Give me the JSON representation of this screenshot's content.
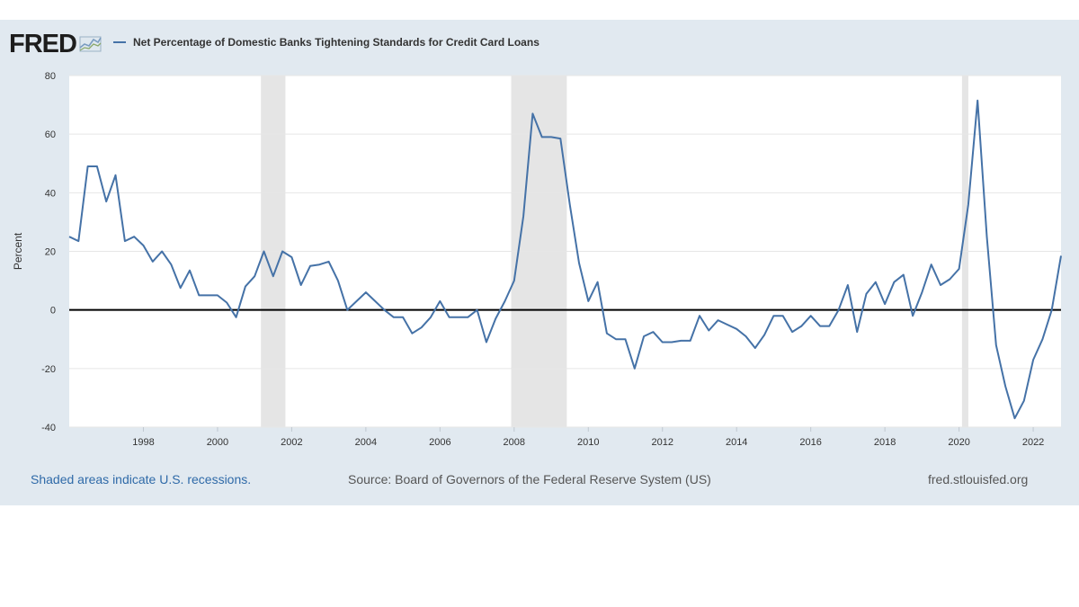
{
  "logo": {
    "text": "FRED",
    "icon": "chart-line-icon"
  },
  "footer": {
    "recession_note": "Shaded areas indicate U.S. recessions.",
    "source": "Source: Board of Governors of the Federal Reserve System (US)",
    "url": "fred.stlouisfed.org"
  },
  "colors": {
    "panel_background": "#e1e9f0",
    "plot_background": "#ffffff",
    "series_line": "#4572a7",
    "recession_shade": "#e5e5e5",
    "zero_line": "#000000",
    "gridline": "#e6e6e6"
  },
  "chart_data": {
    "type": "line",
    "title": "",
    "xlabel": "",
    "ylabel": "Percent",
    "xlim": [
      1996.0,
      2022.75
    ],
    "ylim": [
      -40,
      80
    ],
    "y_ticks": [
      -40,
      -20,
      0,
      20,
      40,
      60,
      80
    ],
    "y_tick_labels": [
      "-40",
      "-20",
      "0",
      "20",
      "40",
      "60",
      "80"
    ],
    "x_ticks": [
      1998,
      2000,
      2002,
      2004,
      2006,
      2008,
      2010,
      2012,
      2014,
      2016,
      2018,
      2020,
      2022
    ],
    "x_tick_labels": [
      "1998",
      "2000",
      "2002",
      "2004",
      "2006",
      "2008",
      "2010",
      "2012",
      "2014",
      "2016",
      "2018",
      "2020",
      "2022"
    ],
    "grid": true,
    "zero_line": true,
    "legend": "top-left",
    "recessions": [
      {
        "start": 2001.17,
        "end": 2001.83
      },
      {
        "start": 2007.92,
        "end": 2009.42
      },
      {
        "start": 2020.08,
        "end": 2020.25
      }
    ],
    "series": [
      {
        "name": "Net Percentage of Domestic Banks Tightening Standards for Credit Card Loans",
        "x": [
          1996.0,
          1996.25,
          1996.5,
          1996.75,
          1997.0,
          1997.25,
          1997.5,
          1997.75,
          1998.0,
          1998.25,
          1998.5,
          1998.75,
          1999.0,
          1999.25,
          1999.5,
          1999.75,
          2000.0,
          2000.25,
          2000.5,
          2000.75,
          2001.0,
          2001.25,
          2001.5,
          2001.75,
          2002.0,
          2002.25,
          2002.5,
          2002.75,
          2003.0,
          2003.25,
          2003.5,
          2003.75,
          2004.0,
          2004.25,
          2004.5,
          2004.75,
          2005.0,
          2005.25,
          2005.5,
          2005.75,
          2006.0,
          2006.25,
          2006.5,
          2006.75,
          2007.0,
          2007.25,
          2007.5,
          2007.75,
          2008.0,
          2008.25,
          2008.5,
          2008.75,
          2009.0,
          2009.25,
          2009.5,
          2009.75,
          2010.0,
          2010.25,
          2010.5,
          2010.75,
          2011.0,
          2011.25,
          2011.5,
          2011.75,
          2012.0,
          2012.25,
          2012.5,
          2012.75,
          2013.0,
          2013.25,
          2013.5,
          2013.75,
          2014.0,
          2014.25,
          2014.5,
          2014.75,
          2015.0,
          2015.25,
          2015.5,
          2015.75,
          2016.0,
          2016.25,
          2016.5,
          2016.75,
          2017.0,
          2017.25,
          2017.5,
          2017.75,
          2018.0,
          2018.25,
          2018.5,
          2018.75,
          2019.0,
          2019.25,
          2019.5,
          2019.75,
          2020.0,
          2020.25,
          2020.5,
          2020.75,
          2021.0,
          2021.25,
          2021.5,
          2021.75,
          2022.0,
          2022.25,
          2022.5,
          2022.75
        ],
        "y": [
          25,
          23.5,
          49,
          49,
          37,
          46,
          23.5,
          25,
          22,
          16.5,
          20,
          15.5,
          7.5,
          13.5,
          5,
          5,
          5,
          2.5,
          -2.5,
          8,
          11.5,
          20,
          11.5,
          20,
          18,
          8.5,
          15,
          15.5,
          16.5,
          10,
          0,
          3,
          6,
          3,
          0,
          -2.5,
          -2.5,
          -8,
          -6,
          -2.5,
          3,
          -2.5,
          -2.5,
          -2.5,
          0,
          -11,
          -3,
          3,
          10,
          32,
          67,
          59,
          59,
          58.5,
          36,
          16,
          3,
          9.5,
          -8,
          -10,
          -10,
          -20,
          -9,
          -7.5,
          -11,
          -11,
          -10.5,
          -10.5,
          -2,
          -7,
          -3.5,
          -5,
          -6.5,
          -9,
          -13,
          -8.5,
          -2,
          -2,
          -7.5,
          -5.5,
          -2,
          -5.5,
          -5.5,
          0,
          8.5,
          -7.5,
          5.5,
          9.5,
          2,
          9.5,
          12,
          -2,
          6,
          15.5,
          8.5,
          10.5,
          14,
          36,
          71.5,
          25,
          -12,
          -26,
          -37,
          -31,
          -17,
          -10,
          0,
          18.5
        ]
      }
    ]
  }
}
